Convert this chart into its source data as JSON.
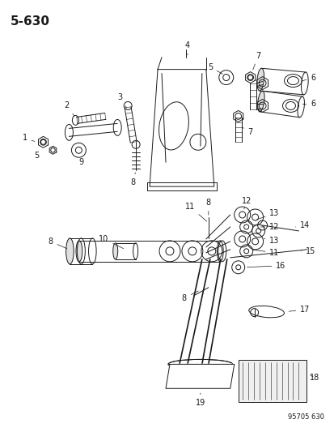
{
  "title": "5-630",
  "watermark": "95705 630",
  "bg_color": "#ffffff",
  "line_color": "#1a1a1a",
  "fig_width": 4.14,
  "fig_height": 5.33,
  "dpi": 100
}
